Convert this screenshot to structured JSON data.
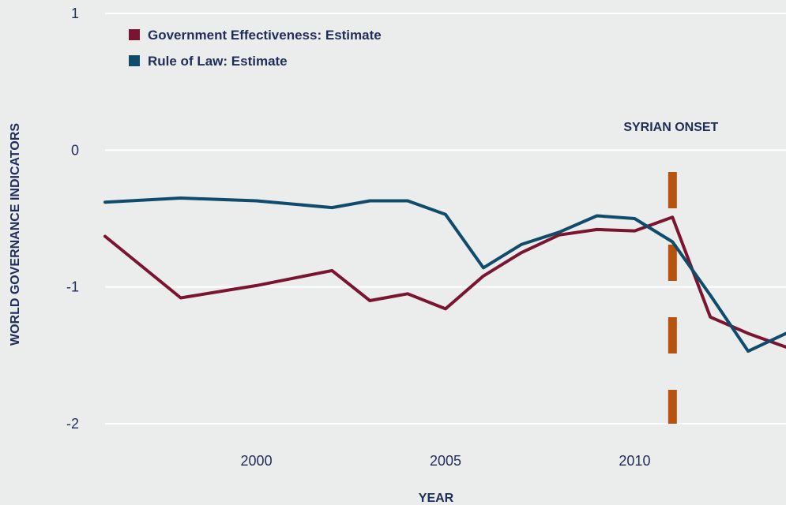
{
  "chart_data": {
    "type": "line",
    "xlabel": "YEAR",
    "ylabel": "WORLD GOVERNANCE INDICATORS",
    "xlim": [
      1996,
      2014
    ],
    "ylim": [
      -2,
      1
    ],
    "xticks": [
      2000,
      2005,
      2010
    ],
    "xtick_labels": [
      "2000",
      "2005",
      "2010"
    ],
    "yticks": [
      1,
      0,
      -1,
      -2
    ],
    "ytick_labels": [
      "1",
      "0",
      "-1",
      "-2"
    ],
    "grid": "horizontal",
    "legend_position": "top-left",
    "series": [
      {
        "name": "Government Effectiveness: Estimate",
        "color": "#7a1430",
        "x": [
          1996,
          1998,
          2000,
          2002,
          2003,
          2004,
          2005,
          2006,
          2007,
          2008,
          2009,
          2010,
          2011,
          2012,
          2013,
          2014
        ],
        "y": [
          -0.63,
          -1.08,
          -0.99,
          -0.88,
          -1.1,
          -1.05,
          -1.16,
          -0.92,
          -0.75,
          -0.62,
          -0.58,
          -0.59,
          -0.49,
          -1.22,
          -1.34,
          -1.44
        ]
      },
      {
        "name": "Rule of Law: Estimate",
        "color": "#0f4c6b",
        "x": [
          1996,
          1998,
          2000,
          2002,
          2003,
          2004,
          2005,
          2006,
          2007,
          2008,
          2009,
          2010,
          2011,
          2012,
          2013,
          2014
        ],
        "y": [
          -0.38,
          -0.35,
          -0.37,
          -0.42,
          -0.37,
          -0.37,
          -0.47,
          -0.86,
          -0.69,
          -0.6,
          -0.48,
          -0.5,
          -0.67,
          -1.06,
          -1.47,
          -1.34
        ]
      }
    ],
    "annotations": [
      {
        "text": "SYRIAN ONSET",
        "x": 2011,
        "color": "#b8520f"
      }
    ]
  }
}
